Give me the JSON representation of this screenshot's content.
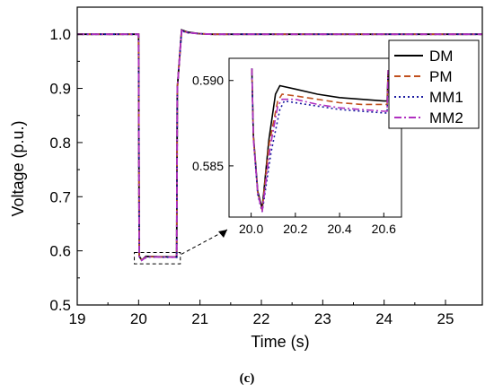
{
  "chart_data": {
    "type": "line",
    "xlabel": "Time (s)",
    "ylabel": "Voltage (p.u.)",
    "xlim": [
      19,
      25.6
    ],
    "ylim": [
      0.5,
      1.05
    ],
    "xticks": [
      "19",
      "20",
      "21",
      "22",
      "23",
      "24",
      "25"
    ],
    "yticks": [
      "0.5",
      "0.6",
      "0.7",
      "0.8",
      "0.9",
      "1.0"
    ],
    "legend": "top-right",
    "series": [
      {
        "name": "DM",
        "color": "#000000",
        "dash": "solid",
        "x": [
          19,
          20.0,
          20.01,
          20.05,
          20.12,
          20.3,
          20.62,
          20.63,
          20.7,
          20.8,
          21.0,
          21.2,
          25.6
        ],
        "y": [
          1.0,
          1.0,
          0.59,
          0.583,
          0.5898,
          0.5892,
          0.5888,
          0.9,
          1.008,
          1.004,
          1.001,
          1.0,
          1.0
        ]
      },
      {
        "name": "PM",
        "color": "#c0501e",
        "dash": "dashed",
        "x": [
          19,
          20.0,
          20.01,
          20.05,
          20.13,
          20.3,
          20.62,
          20.63,
          20.7,
          20.8,
          21.0,
          21.2,
          25.6
        ],
        "y": [
          1.0,
          1.0,
          0.59,
          0.5828,
          0.5893,
          0.5889,
          0.5886,
          0.9,
          1.007,
          1.003,
          1.001,
          1.0,
          1.0
        ]
      },
      {
        "name": "MM1",
        "color": "#1a1aa0",
        "dash": "dotted",
        "x": [
          19,
          20.0,
          20.01,
          20.05,
          20.14,
          20.3,
          20.62,
          20.63,
          20.7,
          20.8,
          21.0,
          21.2,
          25.6
        ],
        "y": [
          1.0,
          1.0,
          0.59,
          0.5826,
          0.5888,
          0.5885,
          0.5882,
          0.9,
          1.006,
          1.003,
          1.001,
          1.0,
          1.0
        ]
      },
      {
        "name": "MM2",
        "color": "#b030c0",
        "dash": "dashdot",
        "x": [
          19,
          20.0,
          20.01,
          20.05,
          20.13,
          20.3,
          20.62,
          20.63,
          20.7,
          20.8,
          21.0,
          21.2,
          25.6
        ],
        "y": [
          1.0,
          1.0,
          0.59,
          0.5825,
          0.589,
          0.5886,
          0.5883,
          0.9,
          1.007,
          1.003,
          1.001,
          1.0,
          1.0
        ]
      }
    ],
    "inset": {
      "xlim": [
        19.9,
        20.68
      ],
      "ylim": [
        0.582,
        0.5913
      ],
      "xticks": [
        "20.0",
        "20.2",
        "20.4",
        "20.6"
      ],
      "yticks": [
        "0.585",
        "0.590"
      ],
      "series": [
        {
          "name": "DM",
          "x": [
            20.003,
            20.01,
            20.03,
            20.05,
            20.08,
            20.11,
            20.13,
            20.2,
            20.3,
            20.4,
            20.5,
            20.6,
            20.615,
            20.62
          ],
          "y": [
            0.5907,
            0.5868,
            0.5835,
            0.5825,
            0.5865,
            0.5892,
            0.5897,
            0.5895,
            0.5892,
            0.589,
            0.5889,
            0.5888,
            0.5888,
            0.5906
          ]
        },
        {
          "name": "PM",
          "x": [
            20.003,
            20.01,
            20.03,
            20.05,
            20.08,
            20.12,
            20.14,
            20.2,
            20.3,
            20.4,
            20.5,
            20.6,
            20.615,
            20.62
          ],
          "y": [
            0.5907,
            0.5867,
            0.5834,
            0.5824,
            0.5862,
            0.5888,
            0.5892,
            0.5891,
            0.5889,
            0.5887,
            0.5886,
            0.5886,
            0.5886,
            0.5906
          ]
        },
        {
          "name": "MM1",
          "x": [
            20.003,
            20.01,
            20.03,
            20.05,
            20.09,
            20.13,
            20.15,
            20.2,
            20.3,
            20.4,
            20.5,
            20.6,
            20.615,
            20.62
          ],
          "y": [
            0.5907,
            0.5866,
            0.5833,
            0.5823,
            0.5858,
            0.5883,
            0.5888,
            0.5887,
            0.5885,
            0.5883,
            0.5882,
            0.5881,
            0.5881,
            0.5906
          ]
        },
        {
          "name": "MM2",
          "x": [
            20.003,
            20.01,
            20.03,
            20.05,
            20.085,
            20.12,
            20.14,
            20.2,
            20.3,
            20.4,
            20.5,
            20.6,
            20.615,
            20.62
          ],
          "y": [
            0.5907,
            0.5866,
            0.5834,
            0.5823,
            0.586,
            0.5885,
            0.5889,
            0.5889,
            0.5886,
            0.5884,
            0.5883,
            0.5882,
            0.5882,
            0.5906
          ]
        }
      ]
    }
  },
  "caption": "(c)"
}
